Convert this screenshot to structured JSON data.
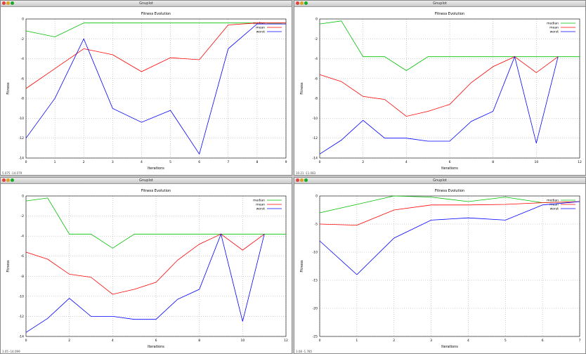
{
  "window_title": "Gnuplot",
  "common": {
    "title": "Fitness Evolution",
    "xlabel": "Iterations",
    "ylabel": "Fitness",
    "legend": [
      "median",
      "mean",
      "worst"
    ],
    "colors": {
      "median": "#00c000",
      "mean": "#ff0000",
      "worst": "#0000ff"
    }
  },
  "windows": [
    {
      "status": "  5.075  -14.079"
    },
    {
      "status": "  10.21  -11.083"
    },
    {
      "status": "  3.05  -14.099"
    },
    {
      "status": "  3.08  -1.785"
    }
  ],
  "chart_data": [
    {
      "type": "line",
      "title": "Fitness Evolution",
      "xlabel": "Iterations",
      "ylabel": "Fitness",
      "xlim": [
        0,
        9
      ],
      "ylim": [
        -14,
        0
      ],
      "xticks": [
        0,
        1,
        2,
        3,
        4,
        5,
        6,
        7,
        8,
        9
      ],
      "yticks": [
        0,
        -2,
        -4,
        -6,
        -8,
        -10,
        -12,
        -14
      ],
      "legend": "top-right",
      "grid": true,
      "series": [
        {
          "name": "median",
          "x": [
            0,
            1,
            2,
            3,
            4,
            5,
            6,
            7,
            8,
            9
          ],
          "y": [
            -1.2,
            -1.8,
            -0.4,
            -0.4,
            -0.4,
            -0.4,
            -0.4,
            -0.4,
            -0.4,
            -0.4
          ]
        },
        {
          "name": "mean",
          "x": [
            0,
            1,
            2,
            3,
            4,
            5,
            6,
            7,
            8,
            9
          ],
          "y": [
            -7.0,
            -5.0,
            -3.0,
            -3.6,
            -5.3,
            -3.9,
            -4.1,
            -0.6,
            -0.4,
            -0.4
          ]
        },
        {
          "name": "worst",
          "x": [
            0,
            1,
            2,
            3,
            4,
            5,
            6,
            7,
            8,
            9
          ],
          "y": [
            -12.0,
            -8.0,
            -2.0,
            -9.0,
            -10.4,
            -9.2,
            -13.6,
            -3.0,
            -0.5,
            -0.5
          ]
        }
      ]
    },
    {
      "type": "line",
      "title": "Fitness Evolution",
      "xlabel": "Iterations",
      "ylabel": "Fitness",
      "xlim": [
        0,
        12
      ],
      "ylim": [
        -14,
        0
      ],
      "xticks": [
        0,
        2,
        4,
        6,
        8,
        10,
        12
      ],
      "yticks": [
        0,
        -2,
        -4,
        -6,
        -8,
        -10,
        -12,
        -14
      ],
      "legend": "top-right",
      "grid": true,
      "series": [
        {
          "name": "median",
          "x": [
            0,
            1,
            2,
            3,
            4,
            5,
            6,
            7,
            8,
            9,
            10,
            11,
            12
          ],
          "y": [
            -0.5,
            -0.2,
            -3.8,
            -3.8,
            -5.2,
            -3.8,
            -3.8,
            -3.8,
            -3.8,
            -3.8,
            -3.8,
            -3.8,
            -3.8
          ]
        },
        {
          "name": "mean",
          "x": [
            0,
            1,
            2,
            3,
            4,
            5,
            6,
            7,
            8,
            9,
            10,
            11
          ],
          "y": [
            -5.6,
            -6.3,
            -7.8,
            -8.1,
            -9.8,
            -9.3,
            -8.6,
            -6.4,
            -4.8,
            -3.8,
            -5.4,
            -3.8
          ]
        },
        {
          "name": "worst",
          "x": [
            0,
            1,
            2,
            3,
            4,
            5,
            6,
            7,
            8,
            9,
            10,
            11
          ],
          "y": [
            -13.6,
            -12.2,
            -10.2,
            -12.0,
            -12.0,
            -12.3,
            -12.3,
            -10.3,
            -9.3,
            -3.8,
            -12.5,
            -3.8
          ]
        }
      ]
    },
    {
      "type": "line",
      "title": "Fitness Evolution",
      "xlabel": "Iterations",
      "ylabel": "Fitness",
      "xlim": [
        0,
        12
      ],
      "ylim": [
        -14,
        0
      ],
      "xticks": [
        0,
        2,
        4,
        6,
        8,
        10,
        12
      ],
      "yticks": [
        0,
        -2,
        -4,
        -6,
        -8,
        -10,
        -12,
        -14
      ],
      "legend": "top-right",
      "grid": true,
      "series": [
        {
          "name": "median",
          "x": [
            0,
            1,
            2,
            3,
            4,
            5,
            6,
            7,
            8,
            9,
            10,
            11,
            12
          ],
          "y": [
            -0.5,
            -0.2,
            -3.8,
            -3.8,
            -5.2,
            -3.8,
            -3.8,
            -3.8,
            -3.8,
            -3.8,
            -3.8,
            -3.8,
            -3.8
          ]
        },
        {
          "name": "mean",
          "x": [
            0,
            1,
            2,
            3,
            4,
            5,
            6,
            7,
            8,
            9,
            10,
            11
          ],
          "y": [
            -5.6,
            -6.3,
            -7.8,
            -8.1,
            -9.8,
            -9.3,
            -8.6,
            -6.4,
            -4.8,
            -3.8,
            -5.4,
            -3.8
          ]
        },
        {
          "name": "worst",
          "x": [
            0,
            1,
            2,
            3,
            4,
            5,
            6,
            7,
            8,
            9,
            10,
            11
          ],
          "y": [
            -13.6,
            -12.2,
            -10.2,
            -12.0,
            -12.0,
            -12.3,
            -12.3,
            -10.3,
            -9.3,
            -3.8,
            -12.5,
            -3.8
          ]
        }
      ]
    },
    {
      "type": "line",
      "title": "Fitness Evolution",
      "xlabel": "Iterations",
      "ylabel": "Fitness",
      "xlim": [
        0,
        7
      ],
      "ylim": [
        -25,
        0
      ],
      "xticks": [
        0,
        1,
        2,
        3,
        4,
        5,
        6,
        7
      ],
      "yticks": [
        0,
        -5,
        -10,
        -15,
        -20,
        -25
      ],
      "legend": "top-right",
      "grid": true,
      "series": [
        {
          "name": "median",
          "x": [
            0,
            1,
            2,
            3,
            4,
            5,
            6,
            7
          ],
          "y": [
            -3.0,
            -1.5,
            0.0,
            -0.2,
            -1.0,
            -0.2,
            -1.2,
            -1.0
          ]
        },
        {
          "name": "mean",
          "x": [
            0,
            1,
            2,
            3,
            4,
            5,
            6,
            7
          ],
          "y": [
            -5.0,
            -5.2,
            -2.5,
            -1.6,
            -1.6,
            -1.5,
            -1.2,
            -1.0
          ]
        },
        {
          "name": "worst",
          "x": [
            0,
            1,
            2,
            3,
            4,
            5,
            6,
            7
          ],
          "y": [
            -8.0,
            -14.0,
            -7.5,
            -4.3,
            -3.9,
            -4.3,
            -1.6,
            -1.0
          ]
        }
      ]
    }
  ]
}
